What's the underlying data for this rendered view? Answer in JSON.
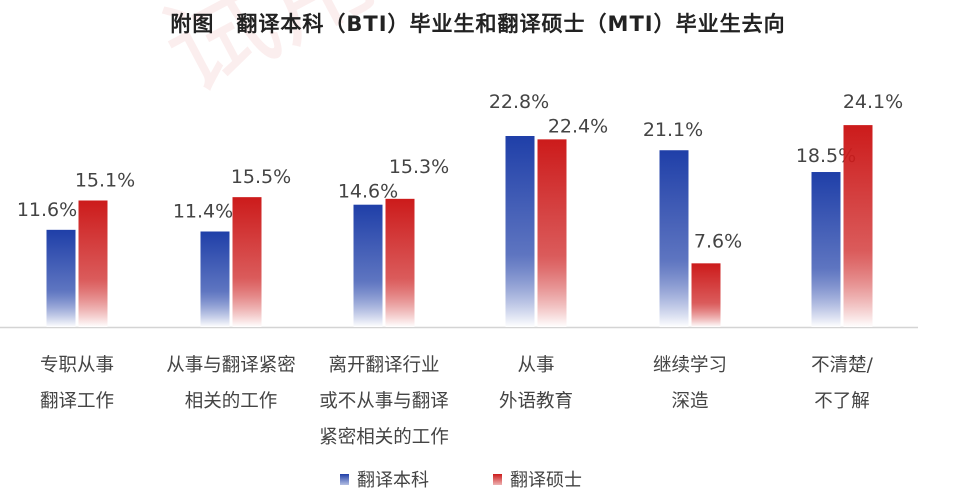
{
  "title": "附图　翻译本科（BTI）毕业生和翻译硕士（MTI）毕业生去向",
  "watermark": "试用版",
  "colors": {
    "bti_top": "#1f3fa8",
    "bti_bottom": "#ffffff",
    "mti_top": "#cc1b1b",
    "mti_bottom": "#ffffff",
    "axis": "#d4d4d4",
    "label": "#444444",
    "title": "#222222"
  },
  "chart_data": {
    "type": "bar",
    "title": "附图　翻译本科（BTI）毕业生和翻译硕士（MTI）毕业生去向",
    "unit": "%",
    "categories": [
      [
        "专职从事",
        "翻译工作"
      ],
      [
        "从事与翻译紧密",
        "相关的工作"
      ],
      [
        "离开翻译行业",
        "或不从事与翻译",
        "紧密相关的工作"
      ],
      [
        "从事",
        "外语教育"
      ],
      [
        "继续学习",
        "深造"
      ],
      [
        "不清楚/",
        "不了解"
      ]
    ],
    "series": [
      {
        "name": "翻译本科",
        "values": [
          11.6,
          11.4,
          14.6,
          22.8,
          21.1,
          18.5
        ],
        "labels": [
          "11.6%",
          "11.4%",
          "14.6%",
          "22.8%",
          "21.1%",
          "18.5%"
        ]
      },
      {
        "name": "翻译硕士",
        "values": [
          15.1,
          15.5,
          15.3,
          22.4,
          7.6,
          24.1
        ],
        "labels": [
          "15.1%",
          "15.5%",
          "15.3%",
          "22.4%",
          "7.6%",
          "24.1%"
        ]
      }
    ],
    "ylim": [
      0,
      30
    ],
    "grid": false,
    "legend_position": "bottom"
  }
}
